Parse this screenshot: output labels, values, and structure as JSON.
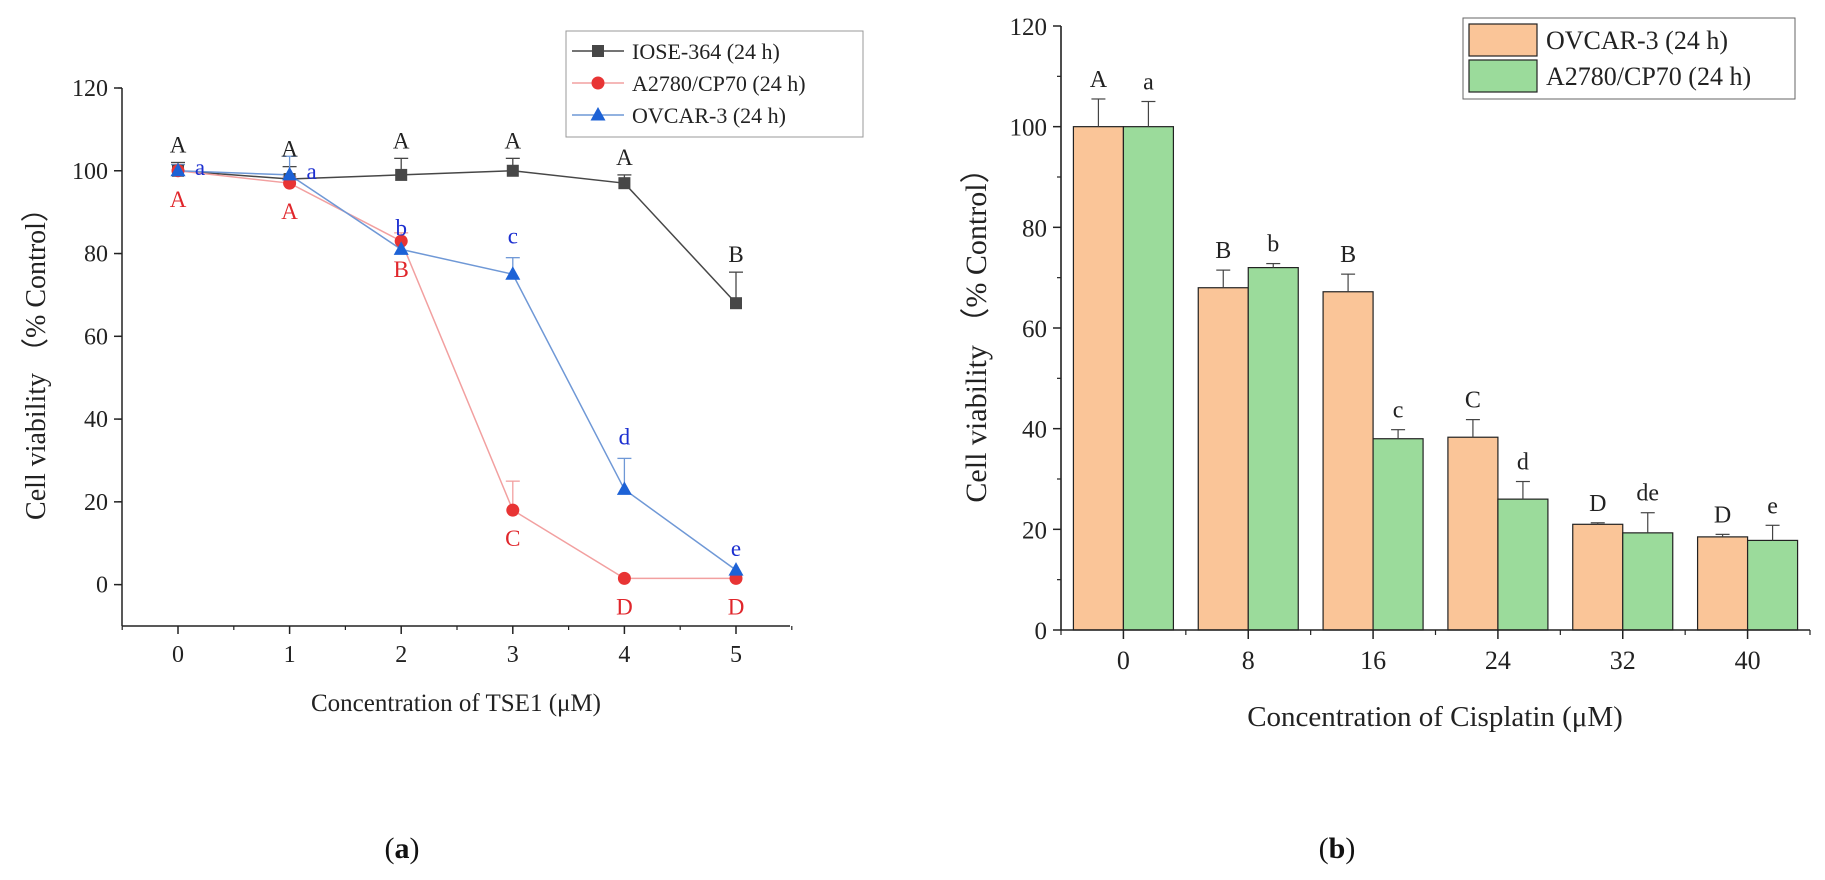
{
  "panels": {
    "a_label": "a",
    "b_label": "b"
  },
  "colors": {
    "iose": "#474747",
    "a2780_line": "#f2a0a0",
    "a2780_marker": "#e83434",
    "ovcar_line": "#6f98d6",
    "ovcar_marker": "#1d62d6",
    "bar_ovcar": "#fac598",
    "bar_a2780": "#9bdb9b",
    "letter_black": "#222222",
    "letter_red": "#e0262b",
    "letter_blue": "#1c2fd0"
  },
  "chart_data": [
    {
      "type": "line",
      "panel": "a",
      "xlabel": "Concentration of TSE1 (μM)",
      "ylabel": "Cell viability （% Control）",
      "x": [
        0,
        1,
        2,
        3,
        4,
        5
      ],
      "xlim": [
        -0.5,
        5.5
      ],
      "ylim": [
        -10,
        120
      ],
      "yticks": [
        0,
        20,
        40,
        60,
        80,
        100,
        120
      ],
      "legend_position": "top-right",
      "series": [
        {
          "name": "IOSE-364 (24 h)",
          "marker": "square",
          "values": [
            100,
            98,
            99,
            100,
            97,
            68
          ],
          "errors": [
            2,
            3,
            4,
            3,
            2,
            7.5
          ],
          "letters": [
            "A",
            "A",
            "A",
            "A",
            "A",
            "B"
          ]
        },
        {
          "name": "A2780/CP70 (24 h)",
          "marker": "circle",
          "values": [
            100,
            97,
            83,
            18,
            1.5,
            1.5
          ],
          "errors": [
            1.5,
            1.5,
            2,
            7,
            0,
            0
          ],
          "letters": [
            "A",
            "A",
            "B",
            "C",
            "D",
            "D"
          ]
        },
        {
          "name": "OVCAR-3 (24 h)",
          "marker": "triangle",
          "values": [
            100,
            99,
            81,
            75,
            23,
            3.5
          ],
          "errors": [
            1.5,
            4.5,
            0,
            4,
            7.5,
            0
          ],
          "letters": [
            "a",
            "a",
            "b",
            "c",
            "d",
            "e"
          ]
        }
      ]
    },
    {
      "type": "bar",
      "panel": "b",
      "xlabel": "Concentration of Cisplatin (μM)",
      "ylabel": "Cell viability （% Control）",
      "categories": [
        "0",
        "8",
        "16",
        "24",
        "32",
        "40"
      ],
      "ylim": [
        0,
        120
      ],
      "yticks": [
        0,
        20,
        40,
        60,
        80,
        100,
        120
      ],
      "legend_position": "top-right",
      "series": [
        {
          "name": "OVCAR-3 (24 h)",
          "values": [
            100,
            68,
            67.2,
            38.3,
            21,
            18.5
          ],
          "errors": [
            5.5,
            3.5,
            3.5,
            3.5,
            0.3,
            0.5
          ],
          "letters": [
            "A",
            "B",
            "B",
            "C",
            "D",
            "D"
          ]
        },
        {
          "name": "A2780/CP70 (24 h)",
          "values": [
            100,
            72,
            38,
            26,
            19.3,
            17.8
          ],
          "errors": [
            5,
            0.8,
            1.8,
            3.5,
            4,
            3
          ],
          "letters": [
            "a",
            "b",
            "c",
            "d",
            "de",
            "e"
          ]
        }
      ]
    }
  ]
}
